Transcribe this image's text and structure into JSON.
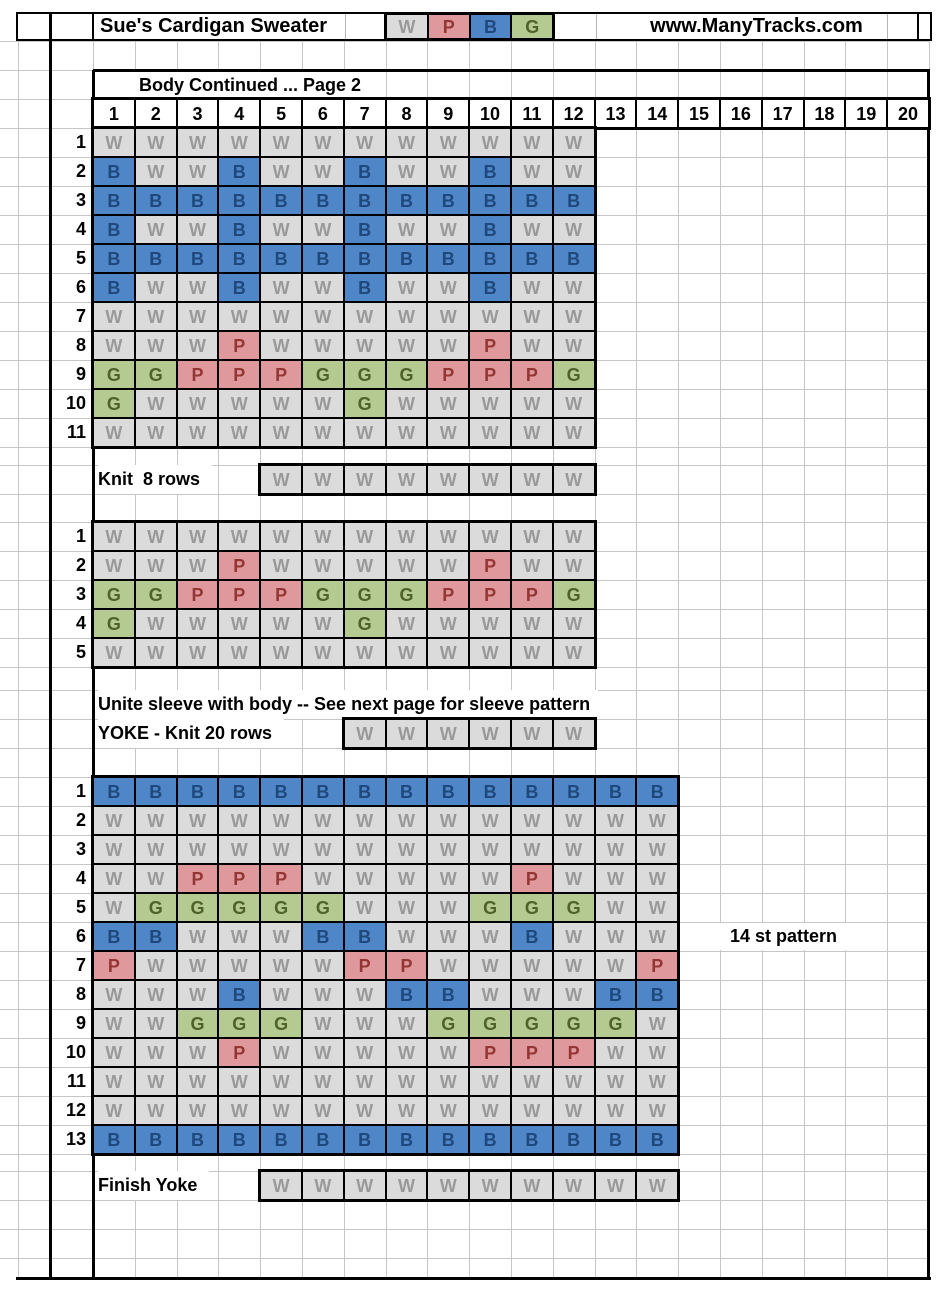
{
  "colors": {
    "W": {
      "bg": "#dbdbdb",
      "fg": "#999999"
    },
    "P": {
      "bg": "#df999c",
      "fg": "#943634"
    },
    "B": {
      "bg": "#4e86c8",
      "fg": "#1f497d"
    },
    "G": {
      "bg": "#b4ca90",
      "fg": "#4f6228"
    }
  },
  "header": {
    "title": "Sue's Cardigan Sweater",
    "website": "www.ManyTracks.com",
    "legend": [
      "W",
      "P",
      "B",
      "G"
    ]
  },
  "section": {
    "header": "Body Continued ... Page 2",
    "column_numbers": [
      "1",
      "2",
      "3",
      "4",
      "5",
      "6",
      "7",
      "8",
      "9",
      "10",
      "11",
      "12",
      "13",
      "14",
      "15",
      "16",
      "17",
      "18",
      "19",
      "20"
    ]
  },
  "charts": [
    {
      "id": "body-chart-top",
      "row_labels": [
        "1",
        "2",
        "3",
        "4",
        "5",
        "6",
        "7",
        "8",
        "9",
        "10",
        "11"
      ],
      "rows": [
        "WWWWWWWWWWWW",
        "BWWBWWBWWBWW",
        "BBBBBBBBBBBB",
        "BWWBWWBWWBWW",
        "BBBBBBBBBBBB",
        "BWWBWWBWWBWW",
        "WWWWWWWWWWWW",
        "WWWPWWWWWPWW",
        "GGPPPGGGPPPG",
        "GWWWWWGWWWWW",
        "WWWWWWWWWWWW"
      ]
    },
    {
      "id": "body-chart-middle",
      "row_labels": [
        "1",
        "2",
        "3",
        "4",
        "5"
      ],
      "rows": [
        "WWWWWWWWWWWW",
        "WWWPWWWWWPWW",
        "GGPPPGGGPPPG",
        "GWWWWWGWWWWW",
        "WWWWWWWWWWWW"
      ]
    },
    {
      "id": "yoke-chart",
      "row_labels": [
        "1",
        "2",
        "3",
        "4",
        "5",
        "6",
        "7",
        "8",
        "9",
        "10",
        "11",
        "12",
        "13"
      ],
      "rows": [
        "BBBBBBBBBBBBBB",
        "WWWWWWWWWWWWWW",
        "WWWWWWWWWWWWWW",
        "WWPPPWWWWWPWWW",
        "WGGGGGWWWGGGWW",
        "BBWWWBBWWWBWWW",
        "PWWWWWPPWWWWWP",
        "WWWBWWWBBWWWBB",
        "WWGGGWWWGGGGGW",
        "WWWPWWWWWPPPWW",
        "WWWWWWWWWWWWWW",
        "WWWWWWWWWWWWWW",
        "BBBBBBBBBBBBBB"
      ]
    }
  ],
  "strips": [
    {
      "id": "knit-8-rows-strip",
      "label": "Knit  8 rows",
      "cells": [
        "W",
        "W",
        "W",
        "W",
        "W",
        "W",
        "W",
        "W"
      ]
    },
    {
      "id": "yoke-knit-strip",
      "label": "YOKE - Knit 20 rows",
      "cells": [
        "W",
        "W",
        "W",
        "W",
        "W",
        "W"
      ]
    },
    {
      "id": "finish-yoke-strip",
      "label": "Finish Yoke",
      "cells": [
        "W",
        "W",
        "W",
        "W",
        "W",
        "W",
        "W",
        "W",
        "W",
        "W"
      ]
    }
  ],
  "notes": {
    "unite": "Unite sleeve with body -- See next page for sleeve pattern",
    "stitch_pattern": "14 st pattern"
  }
}
